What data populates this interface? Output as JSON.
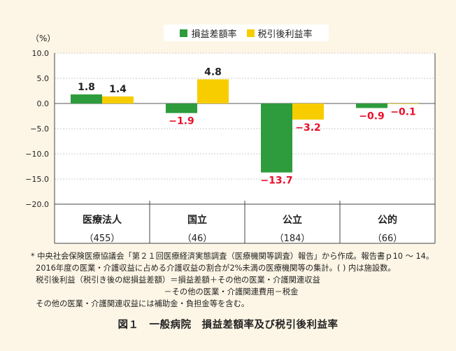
{
  "unit_label": "（%）",
  "legend": [
    {
      "label": "損益差額率",
      "color": "#2e9c3c"
    },
    {
      "label": "税引後利益率",
      "color": "#f7cd00"
    }
  ],
  "chart_data": {
    "type": "bar",
    "categories": [
      "医療法人",
      "国立",
      "公立",
      "公的"
    ],
    "category_counts": [
      "（455）",
      "（46）",
      "（184）",
      "（66）"
    ],
    "series": [
      {
        "name": "損益差額率",
        "values": [
          1.8,
          -1.9,
          -13.7,
          -0.9
        ],
        "color": "#2e9c3c"
      },
      {
        "name": "税引後利益率",
        "values": [
          1.4,
          4.8,
          -3.2,
          -0.1
        ],
        "color": "#f7cd00"
      }
    ],
    "data_labels": [
      [
        "1.8",
        "−1.9",
        "−13.7",
        "−0.9"
      ],
      [
        "1.4",
        "4.8",
        "−3.2",
        "−0.1"
      ]
    ],
    "ylim": [
      -20,
      10
    ],
    "yticks": [
      10,
      5,
      0,
      -5,
      -10,
      -15,
      -20
    ],
    "ytick_labels": [
      "10.0",
      "5.0",
      "0.0",
      "−5.0",
      "−10.0",
      "−15.0",
      "−20.0"
    ],
    "negative_label_color": "#e8102a",
    "grid": true
  },
  "footnotes": [
    "* 中央社会保険医療協議会「第２１回医療経済実態調査（医療機関等調査）報告」から作成。報告書ｐ10 ～ 14。",
    "  2016年度の医業・介護収益に占める介護収益の割合が2%未満の医療機関等の集計。( ) 内は施設数。",
    "  税引後利益（税引き後の総損益差額）＝損益差額＋その他の医業・介護関連収益",
    "                                                     －その他の医業・介護関連費用－税金",
    "  その他の医業・介護関連収益には補助金・負担金等を含む。"
  ],
  "caption": "図１　一般病院　損益差額率及び税引後利益率"
}
